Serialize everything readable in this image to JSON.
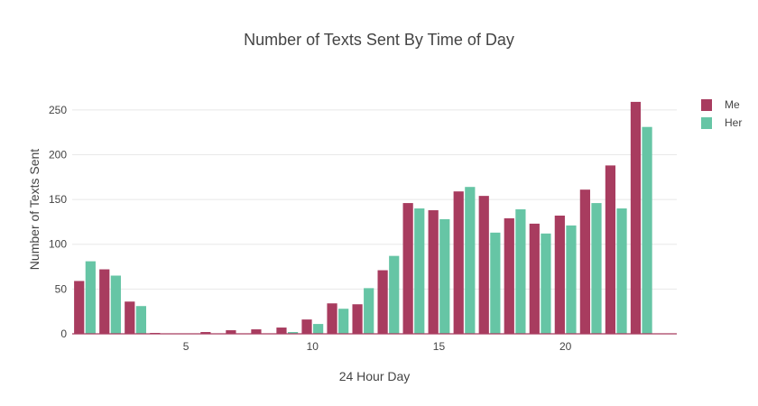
{
  "chart_data": {
    "type": "bar",
    "title": "Number of Texts Sent By Time of Day",
    "xlabel": "24 Hour Day",
    "ylabel": "Number of Texts Sent",
    "x": [
      1,
      2,
      3,
      4,
      5,
      6,
      7,
      8,
      9,
      10,
      11,
      12,
      13,
      14,
      15,
      16,
      17,
      18,
      19,
      20,
      21,
      22,
      23
    ],
    "series": [
      {
        "name": "Me",
        "color": "#a83c5f",
        "values": [
          59,
          72,
          36,
          1,
          0,
          2,
          4,
          5,
          7,
          16,
          34,
          33,
          71,
          146,
          138,
          159,
          154,
          129,
          123,
          132,
          161,
          188,
          259
        ]
      },
      {
        "name": "Her",
        "color": "#66c5a5",
        "values": [
          81,
          65,
          31,
          0,
          0,
          0,
          0,
          0,
          2,
          11,
          28,
          51,
          87,
          140,
          128,
          164,
          113,
          139,
          112,
          121,
          146,
          140,
          231
        ]
      }
    ],
    "xlim": [
      0.5,
      24.4
    ],
    "ylim": [
      0,
      272
    ],
    "xticks": [
      "5",
      "10",
      "15",
      "20"
    ],
    "yticks": [
      "0",
      "50",
      "100",
      "150",
      "200",
      "250"
    ],
    "grid": true,
    "legend": "top-right"
  }
}
